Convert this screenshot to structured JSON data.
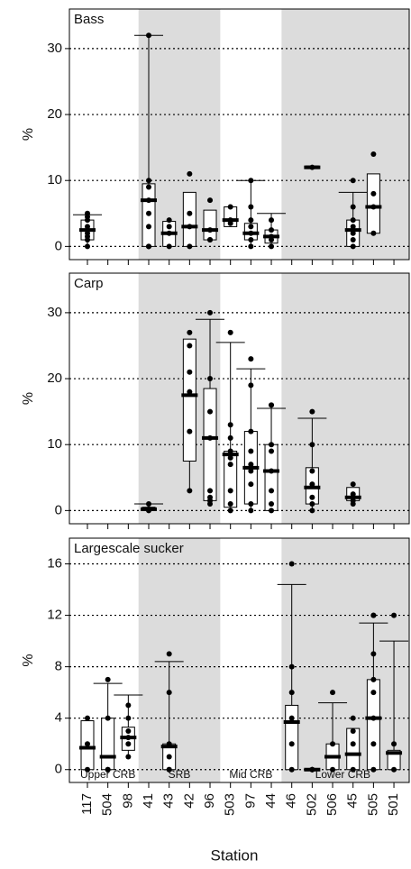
{
  "chart_data": {
    "type": "box",
    "xlabel": "Station",
    "categories": [
      "117",
      "504",
      "98",
      "41",
      "43",
      "42",
      "96",
      "503",
      "97",
      "44",
      "46",
      "502",
      "506",
      "45",
      "505",
      "501"
    ],
    "groups": [
      {
        "label": "Upper CRB",
        "start": 0,
        "end": 2,
        "shaded": false
      },
      {
        "label": "SRB",
        "start": 3,
        "end": 6,
        "shaded": true
      },
      {
        "label": "Mid CRB",
        "start": 7,
        "end": 9,
        "shaded": false
      },
      {
        "label": "Lower CRB",
        "start": 10,
        "end": 15,
        "shaded": true
      }
    ],
    "shade_color": "#dcdcdc",
    "panels": [
      {
        "title": "Bass",
        "ylabel": "%",
        "ylim": [
          -2,
          36
        ],
        "yticks": [
          0,
          10,
          20,
          30
        ],
        "grid": true,
        "whisker_low": [
          0,
          null,
          null,
          0,
          0,
          0,
          1,
          3,
          0,
          0,
          null,
          12,
          null,
          0,
          2,
          null
        ],
        "q1": [
          1,
          null,
          null,
          0,
          0,
          0,
          1,
          3,
          1,
          0.5,
          null,
          11.8,
          null,
          0,
          2,
          null
        ],
        "median": [
          2.5,
          null,
          null,
          7,
          2,
          3,
          2.5,
          4,
          2,
          1.5,
          null,
          12,
          null,
          2.5,
          6,
          null
        ],
        "q3": [
          4,
          null,
          null,
          9.5,
          3.8,
          8.2,
          5.5,
          6,
          3.5,
          2.5,
          null,
          12.2,
          null,
          4,
          11,
          null
        ],
        "whisker_high": [
          4.8,
          null,
          null,
          32,
          3.8,
          8.2,
          5.5,
          6,
          10,
          5,
          null,
          12.2,
          null,
          8.2,
          11,
          null
        ],
        "points": [
          [
            5,
            4.5,
            4,
            3,
            2.5,
            2,
            1.5,
            1,
            0
          ],
          null,
          null,
          [
            32,
            10,
            9,
            7,
            5,
            3,
            0,
            0
          ],
          [
            4,
            3,
            2,
            0
          ],
          [
            11,
            5,
            3,
            0
          ],
          [
            7,
            2.5,
            1,
            1
          ],
          [
            6,
            4,
            3.5
          ],
          [
            10,
            6,
            4,
            3,
            2,
            1,
            0
          ],
          [
            4,
            2.5,
            1.5,
            1,
            0
          ],
          null,
          [
            12
          ],
          null,
          [
            10,
            6,
            4,
            3,
            2,
            1,
            0
          ],
          [
            14,
            8,
            6,
            2
          ],
          null
        ]
      },
      {
        "title": "Carp",
        "ylabel": "%",
        "ylim": [
          -2,
          36
        ],
        "yticks": [
          0,
          10,
          20,
          30
        ],
        "grid": true,
        "whisker_low": [
          null,
          null,
          null,
          0,
          null,
          3,
          1,
          0,
          0,
          0,
          null,
          0,
          null,
          1,
          null,
          null
        ],
        "q1": [
          null,
          null,
          null,
          0,
          null,
          7.5,
          1.5,
          0.5,
          1,
          0,
          null,
          1,
          null,
          1.5,
          null,
          null
        ],
        "median": [
          null,
          null,
          null,
          0.2,
          null,
          17.5,
          11,
          8.5,
          6.5,
          6,
          null,
          3.5,
          null,
          2,
          null,
          null
        ],
        "q3": [
          null,
          null,
          null,
          0.5,
          null,
          26,
          18.5,
          9,
          12,
          10,
          null,
          6.5,
          null,
          3.5,
          null,
          null
        ],
        "whisker_high": [
          null,
          null,
          null,
          1,
          null,
          26,
          29,
          25.5,
          21.5,
          15.5,
          null,
          14,
          null,
          3.5,
          null,
          null
        ],
        "points": [
          null,
          null,
          null,
          [
            1,
            0.2,
            0
          ],
          null,
          [
            27,
            25,
            21,
            18,
            12,
            3
          ],
          [
            30,
            20,
            15,
            11,
            3,
            2,
            1.5,
            1
          ],
          [
            27,
            13,
            11,
            9,
            8,
            7,
            3,
            1,
            0
          ],
          [
            23,
            19,
            12,
            9,
            7,
            6,
            4,
            1,
            0
          ],
          [
            16,
            16,
            10,
            9,
            6,
            3,
            1,
            0
          ],
          null,
          [
            15,
            10,
            6,
            4,
            2,
            1,
            0
          ],
          null,
          [
            4,
            2.5,
            2,
            1.5,
            1
          ],
          null,
          null
        ]
      },
      {
        "title": "Largescale sucker",
        "ylabel": "%",
        "ylim": [
          -1,
          18
        ],
        "yticks": [
          0,
          4,
          8,
          12,
          16
        ],
        "grid": true,
        "whisker_low": [
          0,
          0,
          1,
          null,
          0,
          null,
          null,
          null,
          null,
          null,
          0,
          0,
          0,
          0,
          0,
          0
        ],
        "q1": [
          0,
          0,
          1.5,
          null,
          0,
          null,
          null,
          null,
          null,
          null,
          0,
          0,
          0,
          0,
          0,
          0
        ],
        "median": [
          1.7,
          1,
          2.5,
          null,
          1.8,
          null,
          null,
          null,
          null,
          null,
          3.7,
          0,
          1,
          1.2,
          4,
          1.3
        ],
        "q3": [
          3.8,
          4,
          3.3,
          null,
          2,
          null,
          null,
          null,
          null,
          null,
          5,
          0,
          2,
          3.2,
          7,
          1.5
        ],
        "whisker_high": [
          3.8,
          6.7,
          5.8,
          null,
          8.4,
          null,
          null,
          null,
          null,
          null,
          14.4,
          0,
          5.2,
          3.2,
          11.4,
          10
        ],
        "points": [
          [
            4,
            2,
            0
          ],
          [
            7,
            4,
            0,
            0
          ],
          [
            5,
            4,
            3,
            2.5,
            2,
            1
          ],
          null,
          [
            9,
            6,
            2,
            1,
            0,
            0
          ],
          null,
          null,
          null,
          null,
          null,
          [
            16,
            8,
            6,
            4,
            2,
            0
          ],
          [
            0,
            0,
            0
          ],
          [
            6,
            2,
            0
          ],
          [
            4,
            3,
            2,
            0
          ],
          [
            12,
            12,
            9,
            7,
            6,
            4,
            2,
            0
          ],
          [
            12,
            2,
            0
          ]
        ]
      }
    ]
  }
}
